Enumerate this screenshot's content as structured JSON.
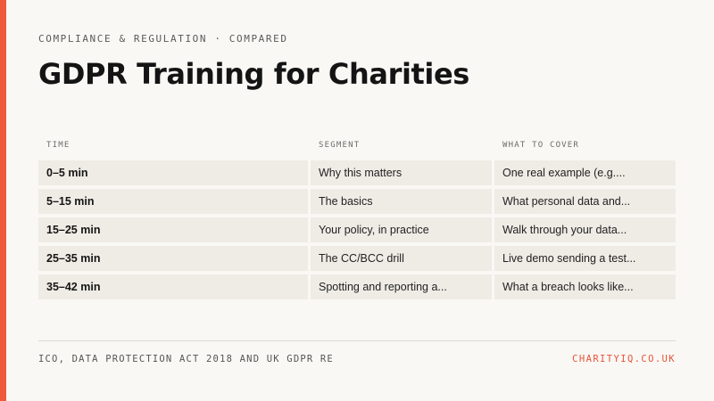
{
  "header": {
    "eyebrow": "COMPLIANCE & REGULATION · COMPARED",
    "title": "GDPR Training for Charities"
  },
  "table": {
    "columns": [
      "TIME",
      "SEGMENT",
      "WHAT TO COVER"
    ],
    "rows": [
      {
        "time": "0–5 min",
        "segment": "Why this matters",
        "cover": "One real example (e.g...."
      },
      {
        "time": "5–15 min",
        "segment": "The basics",
        "cover": "What personal data and..."
      },
      {
        "time": "15–25 min",
        "segment": "Your policy, in practice",
        "cover": "Walk through your data..."
      },
      {
        "time": "25–35 min",
        "segment": "The CC/BCC drill",
        "cover": "Live demo sending a test..."
      },
      {
        "time": "35–42 min",
        "segment": "Spotting and reporting a...",
        "cover": "What a breach looks like..."
      }
    ]
  },
  "footer": {
    "source": "ICO, DATA PROTECTION ACT 2018 AND UK GDPR RE",
    "site": "CHARITYIQ.CO.UK"
  },
  "colors": {
    "accent": "#f05a3c",
    "background": "#f9f8f4",
    "cell": "#efece6"
  }
}
